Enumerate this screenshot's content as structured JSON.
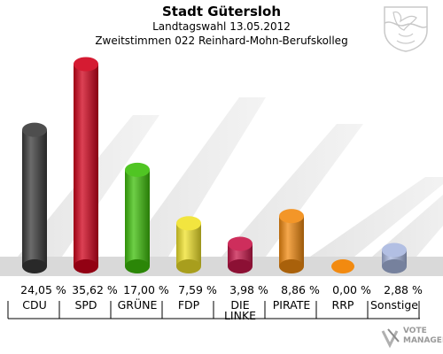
{
  "header": {
    "title": "Stadt Gütersloh",
    "subtitle": "Landtagswahl 13.05.2012",
    "subtitle2": "Zweitstimmen 022 Reinhard-Mohn-Berufskolleg"
  },
  "watermark": {
    "line1": "VOTE",
    "line2": "MANAGER"
  },
  "chart_data": {
    "type": "bar",
    "title": "Stadt Gütersloh",
    "categories": [
      "CDU",
      "SPD",
      "GRÜNE",
      "FDP",
      "DIE LINKE",
      "PIRATE",
      "RRP",
      "Sonstige"
    ],
    "values": [
      24.05,
      35.62,
      17.0,
      7.59,
      3.98,
      8.86,
      0.0,
      2.88
    ],
    "value_labels": [
      "24,05 %",
      "35,62 %",
      "17,00 %",
      "7,59 %",
      "3,98 %",
      "8,86 %",
      "0,00 %",
      "2,88 %"
    ],
    "colors": [
      "#3a3a3a",
      "#d0021b",
      "#3dbf0a",
      "#f0e22a",
      "#c8174a",
      "#f28a10",
      "#f28a10",
      "#a9b8e0"
    ],
    "ylim": [
      0,
      36
    ],
    "grid": false,
    "legend": "none"
  }
}
